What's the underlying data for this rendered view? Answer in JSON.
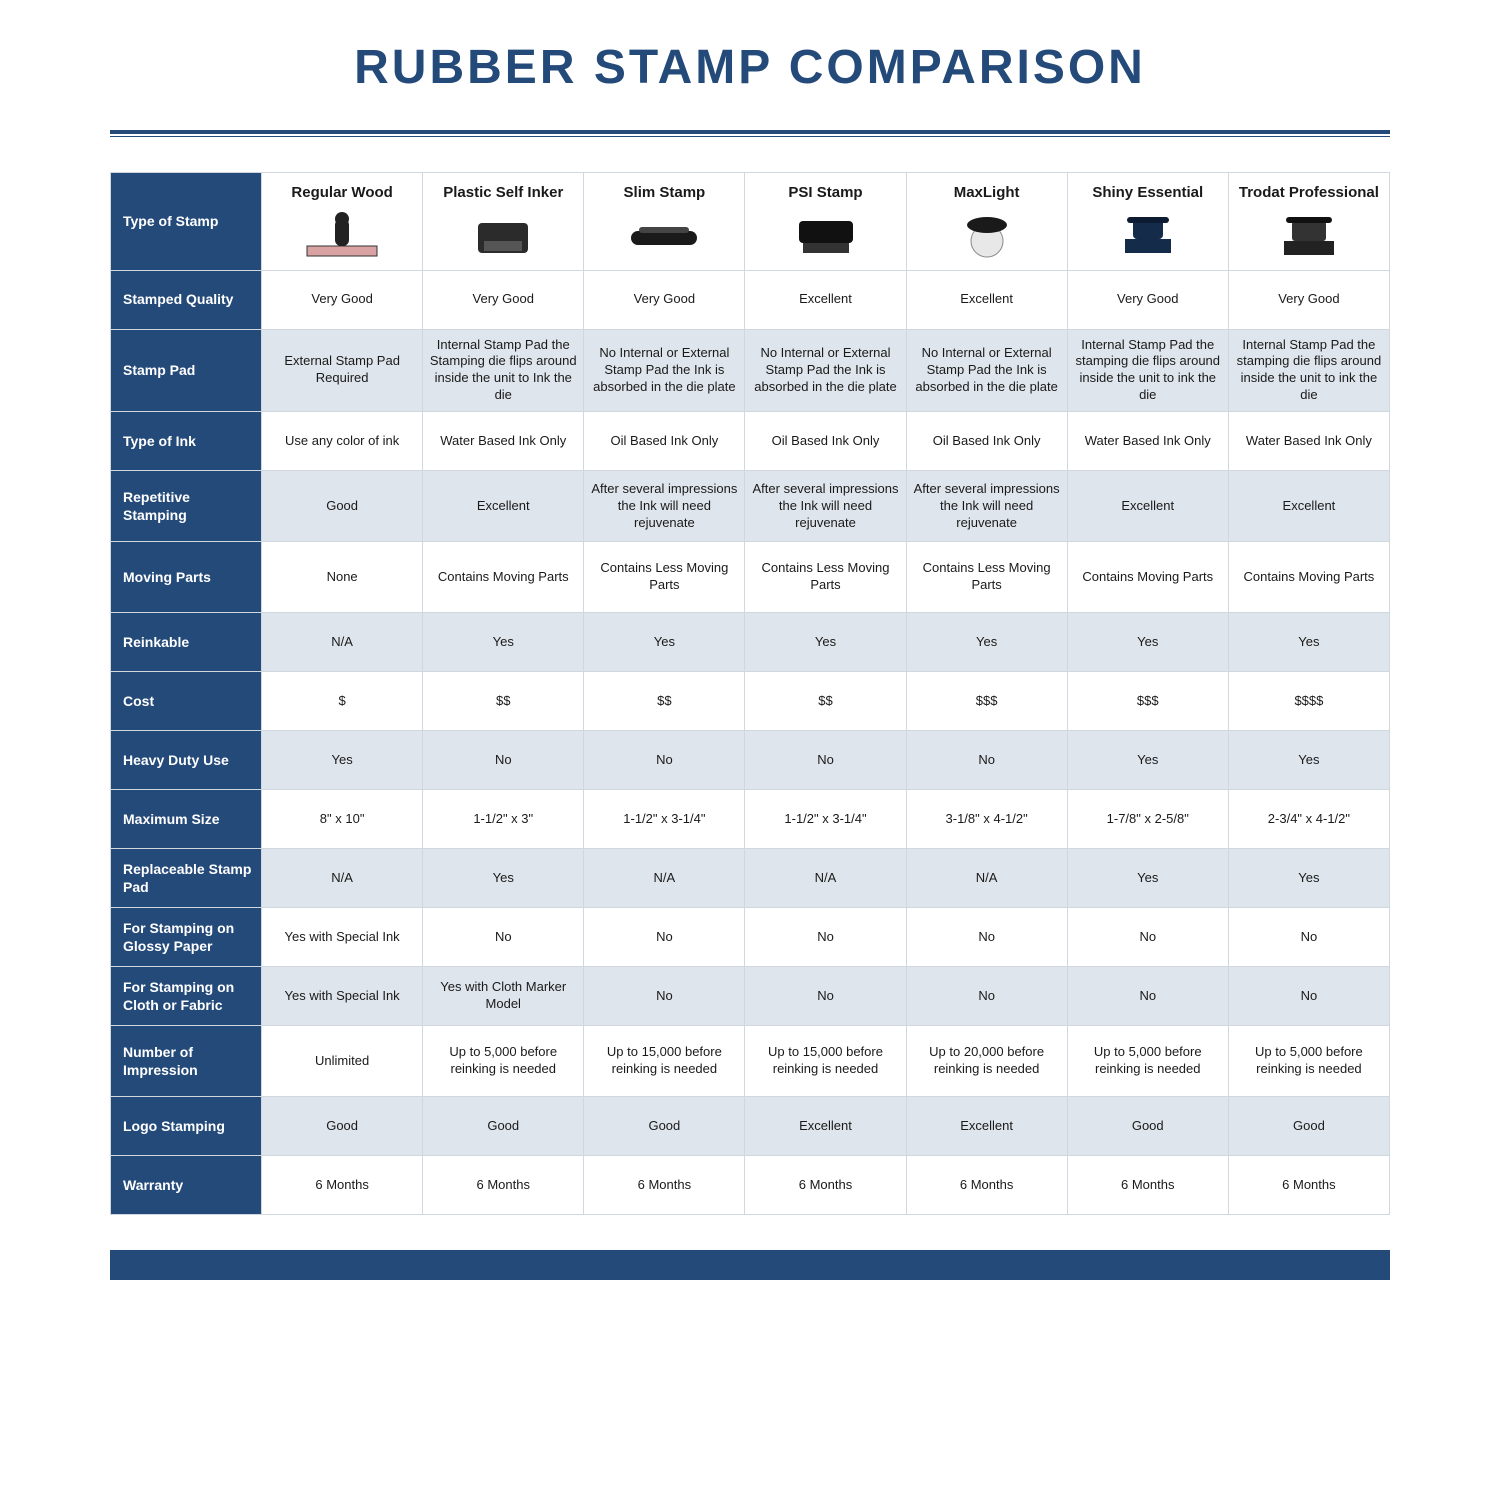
{
  "colors": {
    "primary": "#244a7a",
    "altRow": "#dfe5ec",
    "border": "#cfd6dd",
    "text": "#1a1a1a"
  },
  "title": "RUBBER STAMP COMPARISON",
  "columns": [
    {
      "name": "Regular Wood"
    },
    {
      "name": "Plastic Self Inker"
    },
    {
      "name": "Slim Stamp"
    },
    {
      "name": "PSI Stamp"
    },
    {
      "name": "MaxLight"
    },
    {
      "name": "Shiny Essential"
    },
    {
      "name": "Trodat Professional"
    }
  ],
  "rows": [
    {
      "label": "Type of Stamp",
      "kind": "head"
    },
    {
      "label": "Stamped Quality",
      "cells": [
        "Very Good",
        "Very Good",
        "Very Good",
        "Excellent",
        "Excellent",
        "Very Good",
        "Very Good"
      ]
    },
    {
      "label": "Stamp Pad",
      "cells": [
        "External Stamp Pad Required",
        "Internal Stamp Pad the Stamping die flips around inside the unit to Ink the die",
        "No Internal or External Stamp Pad the Ink is absorbed in the die plate",
        "No Internal or External Stamp Pad the Ink is absorbed in the die plate",
        "No Internal or External Stamp Pad the Ink is absorbed in the die plate",
        "Internal Stamp Pad the stamping die flips around inside the unit to ink the die",
        "Internal Stamp Pad the stamping die flips around inside the unit to ink the die"
      ]
    },
    {
      "label": "Type of Ink",
      "cells": [
        "Use any color of ink",
        "Water Based Ink Only",
        "Oil Based Ink Only",
        "Oil Based Ink Only",
        "Oil Based Ink Only",
        "Water Based Ink Only",
        "Water Based Ink Only"
      ]
    },
    {
      "label": "Repetitive Stamping",
      "cells": [
        "Good",
        "Excellent",
        "After several impressions the Ink will need rejuvenate",
        "After several impressions the Ink will need rejuvenate",
        "After several impressions the Ink will need rejuvenate",
        "Excellent",
        "Excellent"
      ]
    },
    {
      "label": "Moving Parts",
      "cells": [
        "None",
        "Contains Moving Parts",
        "Contains Less Moving Parts",
        "Contains Less Moving Parts",
        "Contains Less Moving Parts",
        "Contains Moving Parts",
        "Contains Moving Parts"
      ]
    },
    {
      "label": "Reinkable",
      "cells": [
        "N/A",
        "Yes",
        "Yes",
        "Yes",
        "Yes",
        "Yes",
        "Yes"
      ]
    },
    {
      "label": "Cost",
      "cells": [
        "$",
        "$$",
        "$$",
        "$$",
        "$$$",
        "$$$",
        "$$$$"
      ]
    },
    {
      "label": "Heavy Duty Use",
      "cells": [
        "Yes",
        "No",
        "No",
        "No",
        "No",
        "Yes",
        "Yes"
      ]
    },
    {
      "label": "Maximum Size",
      "cells": [
        "8\" x 10\"",
        "1-1/2\" x 3\"",
        "1-1/2\" x 3-1/4\"",
        "1-1/2\" x 3-1/4\"",
        "3-1/8\" x 4-1/2\"",
        "1-7/8\" x 2-5/8\"",
        "2-3/4\" x 4-1/2\""
      ]
    },
    {
      "label": "Replaceable Stamp Pad",
      "cells": [
        "N/A",
        "Yes",
        "N/A",
        "N/A",
        "N/A",
        "Yes",
        "Yes"
      ]
    },
    {
      "label": "For Stamping on Glossy Paper",
      "cells": [
        "Yes with Special Ink",
        "No",
        "No",
        "No",
        "No",
        "No",
        "No"
      ]
    },
    {
      "label": "For Stamping on Cloth or Fabric",
      "cells": [
        "Yes with Special Ink",
        "Yes with Cloth Marker Model",
        "No",
        "No",
        "No",
        "No",
        "No"
      ]
    },
    {
      "label": "Number of Impression",
      "cells": [
        "Unlimited",
        "Up to 5,000 before reinking is needed",
        "Up to 15,000 before reinking is needed",
        "Up to 15,000 before reinking is needed",
        "Up to 20,000 before reinking is needed",
        "Up to 5,000 before reinking is needed",
        "Up to 5,000 before reinking is needed"
      ]
    },
    {
      "label": "Logo Stamping",
      "cells": [
        "Good",
        "Good",
        "Good",
        "Excellent",
        "Excellent",
        "Good",
        "Good"
      ]
    },
    {
      "label": "Warranty",
      "cells": [
        "6 Months",
        "6 Months",
        "6 Months",
        "6 Months",
        "6 Months",
        "6 Months",
        "6 Months"
      ]
    }
  ],
  "layout": {
    "labelColWidth": 150,
    "dataColWidth": 160,
    "tallRows": [
      2,
      4,
      5,
      13
    ],
    "altShadeEvenDataRowsStartingAt": 1
  }
}
